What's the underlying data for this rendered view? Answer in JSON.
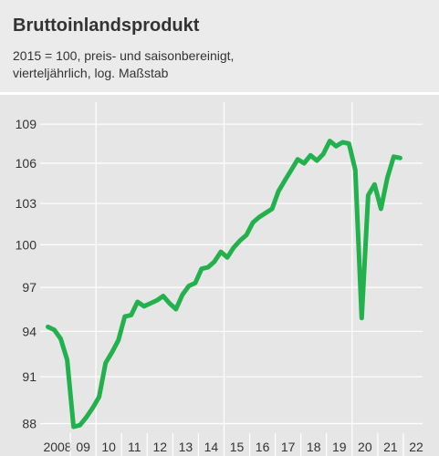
{
  "chart_data": {
    "type": "line",
    "title": "Bruttoinlandsprodukt",
    "subtitle": [
      "2015 = 100, preis- und saisonbereinigt,",
      "vierteljährlich, log. Maßstab"
    ],
    "xlabel": "",
    "ylabel": "",
    "yscale": "log",
    "ylim": [
      87.4,
      110.3
    ],
    "yticks": [
      88,
      91,
      94,
      97,
      100,
      103,
      106,
      109
    ],
    "xlim": [
      2008,
      2022.75
    ],
    "xticks": [
      {
        "label": "2008",
        "x": 2008
      },
      {
        "label": "09",
        "x": 2009
      },
      {
        "label": "10",
        "x": 2010
      },
      {
        "label": "11",
        "x": 2011
      },
      {
        "label": "12",
        "x": 2012
      },
      {
        "label": "13",
        "x": 2013
      },
      {
        "label": "14",
        "x": 2014
      },
      {
        "label": "15",
        "x": 2015
      },
      {
        "label": "16",
        "x": 2016
      },
      {
        "label": "17",
        "x": 2017
      },
      {
        "label": "18",
        "x": 2018
      },
      {
        "label": "19",
        "x": 2019
      },
      {
        "label": "20",
        "x": 2020
      },
      {
        "label": "21",
        "x": 2021
      },
      {
        "label": "22",
        "x": 2022
      }
    ],
    "grid": {
      "horizontal": true,
      "vertical": "every 5 years (2010, 2015, 2020)"
    },
    "colors": {
      "line": "#22b14c",
      "header_bg": "#ebebeb",
      "plot_bg": "#e6e6e6",
      "grid": "#ffffff",
      "text": "#333333"
    },
    "series": [
      {
        "x": [
          "2008 Q1",
          "2008 Q2",
          "2008 Q3",
          "2008 Q4",
          "2009 Q1",
          "2009 Q2",
          "2009 Q3",
          "2009 Q4",
          "2010 Q1",
          "2010 Q2",
          "2010 Q3",
          "2010 Q4",
          "2011 Q1",
          "2011 Q2",
          "2011 Q3",
          "2011 Q4",
          "2012 Q1",
          "2012 Q2",
          "2012 Q3",
          "2012 Q4",
          "2013 Q1",
          "2013 Q2",
          "2013 Q3",
          "2013 Q4",
          "2014 Q1",
          "2014 Q2",
          "2014 Q3",
          "2014 Q4",
          "2015 Q1",
          "2015 Q2",
          "2015 Q3",
          "2015 Q4",
          "2016 Q1",
          "2016 Q2",
          "2016 Q3",
          "2016 Q4",
          "2017 Q1",
          "2017 Q2",
          "2017 Q3",
          "2017 Q4",
          "2018 Q1",
          "2018 Q2",
          "2018 Q3",
          "2018 Q4",
          "2019 Q1",
          "2019 Q2",
          "2019 Q3",
          "2019 Q4",
          "2020 Q1",
          "2020 Q2",
          "2020 Q3",
          "2020 Q4",
          "2021 Q1",
          "2021 Q2",
          "2021 Q3",
          "2021 Q4"
        ],
        "values": [
          94.3,
          94.1,
          93.5,
          92.1,
          87.8,
          87.9,
          88.4,
          89.0,
          89.7,
          91.9,
          92.6,
          93.4,
          95.0,
          95.1,
          96.0,
          95.7,
          95.9,
          96.1,
          96.4,
          95.9,
          95.5,
          96.5,
          97.1,
          97.3,
          98.3,
          98.4,
          98.8,
          99.5,
          99.1,
          99.8,
          100.3,
          100.7,
          101.6,
          102.0,
          102.3,
          102.6,
          103.9,
          104.7,
          105.5,
          106.3,
          106.0,
          106.6,
          106.2,
          106.7,
          107.7,
          107.3,
          107.6,
          107.5,
          105.5,
          94.9,
          103.6,
          104.4,
          102.6,
          104.9,
          106.5,
          106.4
        ]
      }
    ]
  }
}
